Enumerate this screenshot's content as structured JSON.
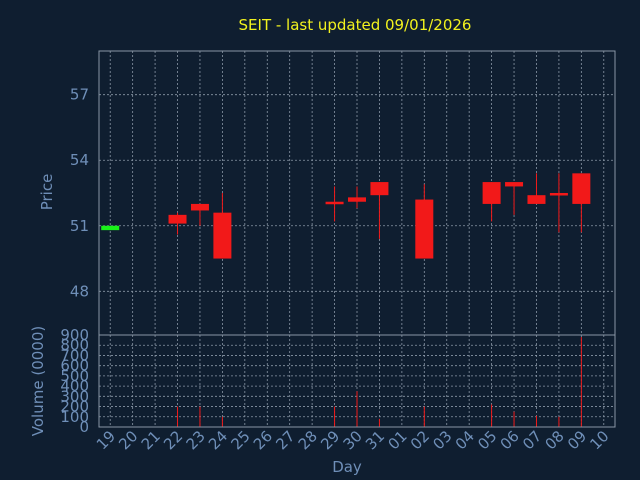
{
  "chart_data": {
    "type": "candlestick",
    "title": "SEIT - last updated 09/01/2026",
    "xlabel": "Day",
    "ylabel_price": "Price",
    "ylabel_volume": "Volume (0000)",
    "x_ticks": [
      "19",
      "20",
      "21",
      "22",
      "23",
      "24",
      "25",
      "26",
      "27",
      "28",
      "29",
      "30",
      "31",
      "01",
      "02",
      "03",
      "04",
      "05",
      "06",
      "07",
      "08",
      "09",
      "10"
    ],
    "price_ticks": [
      48,
      51,
      54,
      57
    ],
    "price_range": [
      46,
      59
    ],
    "volume_ticks": [
      0,
      100,
      200,
      300,
      400,
      500,
      600,
      700,
      800,
      900
    ],
    "volume_range": [
      0,
      900
    ],
    "grid": true,
    "candles": [
      {
        "day": "19",
        "open": 50.8,
        "close": 51.0,
        "high": 51.0,
        "low": 50.8,
        "volume": 0
      },
      {
        "day": "22",
        "open": 51.5,
        "close": 51.1,
        "high": 51.6,
        "low": 50.6,
        "volume": 200
      },
      {
        "day": "23",
        "open": 52.0,
        "close": 51.7,
        "high": 52.0,
        "low": 51.0,
        "volume": 200
      },
      {
        "day": "24",
        "open": 51.6,
        "close": 49.5,
        "high": 52.5,
        "low": 49.5,
        "volume": 100
      },
      {
        "day": "29",
        "open": 52.1,
        "close": 52.05,
        "high": 52.8,
        "low": 51.2,
        "volume": 200
      },
      {
        "day": "30",
        "open": 52.3,
        "close": 52.1,
        "high": 52.8,
        "low": 51.8,
        "volume": 350
      },
      {
        "day": "31",
        "open": 53.0,
        "close": 52.4,
        "high": 53.0,
        "low": 50.4,
        "volume": 80
      },
      {
        "day": "02",
        "open": 52.2,
        "close": 49.5,
        "high": 52.9,
        "low": 49.5,
        "volume": 200
      },
      {
        "day": "05",
        "open": 53.0,
        "close": 52.0,
        "high": 53.0,
        "low": 51.2,
        "volume": 220
      },
      {
        "day": "06",
        "open": 53.0,
        "close": 52.8,
        "high": 53.0,
        "low": 51.5,
        "volume": 150
      },
      {
        "day": "07",
        "open": 52.4,
        "close": 52.0,
        "high": 53.4,
        "low": 52.0,
        "volume": 110
      },
      {
        "day": "08",
        "open": 52.5,
        "close": 52.4,
        "high": 53.4,
        "low": 50.7,
        "volume": 100
      },
      {
        "day": "09",
        "open": 53.4,
        "close": 52.0,
        "high": 53.4,
        "low": 50.7,
        "volume": 880
      }
    ],
    "colors": {
      "background": "#0f1e30",
      "up": "#19f219",
      "down": "#f21919",
      "grid": "#8a97a6",
      "text": "#6f8fb8",
      "title": "#f2f21e"
    }
  }
}
